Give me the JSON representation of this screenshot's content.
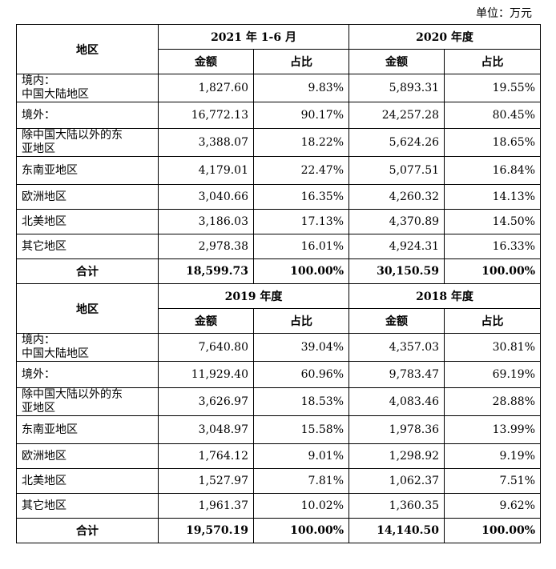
{
  "unit_label": "单位：万元",
  "header_region": "地区",
  "header_amount": "金额",
  "header_share": "占比",
  "blocks": [
    {
      "period1": "2021 年 1-6 月",
      "period2": "2020 年度",
      "rows": [
        {
          "region": "境内：\n中国大陆地区",
          "a1": "1,827.60",
          "s1": "9.83%",
          "a2": "5,893.31",
          "s2": "19.55%"
        },
        {
          "region": "境外：",
          "a1": "16,772.13",
          "s1": "90.17%",
          "a2": "24,257.28",
          "s2": "80.45%"
        },
        {
          "region": "除中国大陆以外的东\n亚地区",
          "a1": "3,388.07",
          "s1": "18.22%",
          "a2": "5,624.26",
          "s2": "18.65%"
        },
        {
          "region": "东南亚地区",
          "a1": "4,179.01",
          "s1": "22.47%",
          "a2": "5,077.51",
          "s2": "16.84%"
        },
        {
          "region": "欧洲地区",
          "a1": "3,040.66",
          "s1": "16.35%",
          "a2": "4,260.32",
          "s2": "14.13%"
        },
        {
          "region": "北美地区",
          "a1": "3,186.03",
          "s1": "17.13%",
          "a2": "4,370.89",
          "s2": "14.50%"
        },
        {
          "region": "其它地区",
          "a1": "2,978.38",
          "s1": "16.01%",
          "a2": "4,924.31",
          "s2": "16.33%"
        }
      ],
      "total": {
        "label": "合计",
        "a1": "18,599.73",
        "s1": "100.00%",
        "a2": "30,150.59",
        "s2": "100.00%"
      }
    },
    {
      "period1": "2019 年度",
      "period2": "2018 年度",
      "rows": [
        {
          "region": "境内：\n中国大陆地区",
          "a1": "7,640.80",
          "s1": "39.04%",
          "a2": "4,357.03",
          "s2": "30.81%"
        },
        {
          "region": "境外：",
          "a1": "11,929.40",
          "s1": "60.96%",
          "a2": "9,783.47",
          "s2": "69.19%"
        },
        {
          "region": "除中国大陆以外的东\n亚地区",
          "a1": "3,626.97",
          "s1": "18.53%",
          "a2": "4,083.46",
          "s2": "28.88%"
        },
        {
          "region": "东南亚地区",
          "a1": "3,048.97",
          "s1": "15.58%",
          "a2": "1,978.36",
          "s2": "13.99%"
        },
        {
          "region": "欧洲地区",
          "a1": "1,764.12",
          "s1": "9.01%",
          "a2": "1,298.92",
          "s2": "9.19%"
        },
        {
          "region": "北美地区",
          "a1": "1,527.97",
          "s1": "7.81%",
          "a2": "1,062.37",
          "s2": "7.51%"
        },
        {
          "region": "其它地区",
          "a1": "1,961.37",
          "s1": "10.02%",
          "a2": "1,360.35",
          "s2": "9.62%"
        }
      ],
      "total": {
        "label": "合计",
        "a1": "19,570.19",
        "s1": "100.00%",
        "a2": "14,140.50",
        "s2": "100.00%"
      }
    }
  ]
}
